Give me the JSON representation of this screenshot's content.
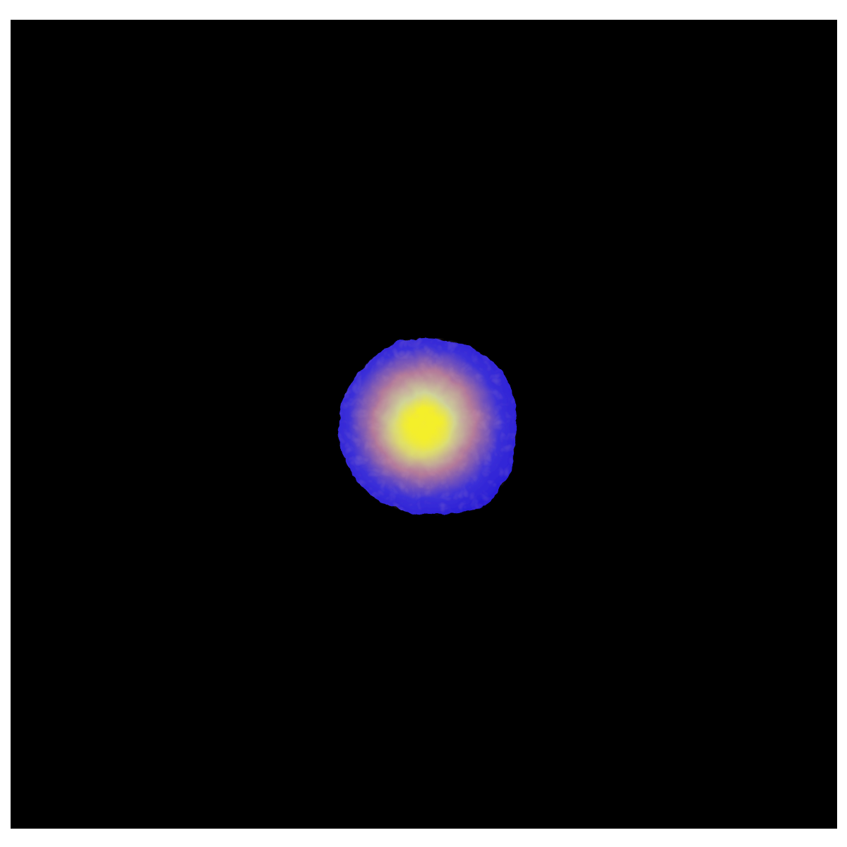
{
  "figure": {
    "background_color": "#000000",
    "border_color": "#ffffff",
    "object": {
      "kind": "volume-render-sphere-icon",
      "colors": {
        "rim": "#2a1fd6",
        "shell": "#3b2fd8",
        "mid_warm": "#b37a9a",
        "inner": "#cfd39a",
        "core": "#f4ef2a"
      }
    }
  }
}
